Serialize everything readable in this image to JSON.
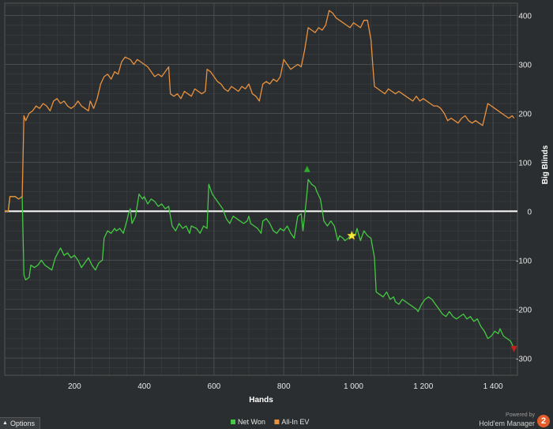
{
  "colors": {
    "background": "#2b2e30",
    "grid": "#4a4d50",
    "net_won": "#43c943",
    "all_in_ev": "#e8913f",
    "zero_line": "#ffffff",
    "star": "#f7e83a",
    "max_marker": "#2ea82e",
    "min_marker": "#c42020"
  },
  "chart_data": {
    "type": "line",
    "xlabel": "Hands",
    "ylabel": "Big Blinds",
    "xlim": [
      0,
      1470
    ],
    "ylim": [
      -335,
      425
    ],
    "x_ticks": [
      200,
      400,
      600,
      800,
      1000,
      1200,
      1400
    ],
    "x_tick_labels": [
      "200",
      "400",
      "600",
      "800",
      "1 000",
      "1 200",
      "1 400"
    ],
    "y_ticks": [
      400,
      300,
      200,
      100,
      0,
      -100,
      -200,
      -300
    ],
    "y_tick_labels": [
      "400",
      "300",
      "200",
      "100",
      "0",
      "-100",
      "-200",
      "-300"
    ],
    "grid": true,
    "legend_position": "bottom-center",
    "series": [
      {
        "name": "Net Won",
        "color": "#43c943",
        "points": [
          [
            0,
            0
          ],
          [
            10,
            0
          ],
          [
            15,
            30
          ],
          [
            30,
            30
          ],
          [
            40,
            25
          ],
          [
            50,
            30
          ],
          [
            55,
            -130
          ],
          [
            60,
            -140
          ],
          [
            70,
            -135
          ],
          [
            75,
            -110
          ],
          [
            85,
            -115
          ],
          [
            95,
            -110
          ],
          [
            105,
            -100
          ],
          [
            115,
            -110
          ],
          [
            125,
            -115
          ],
          [
            135,
            -120
          ],
          [
            145,
            -95
          ],
          [
            160,
            -75
          ],
          [
            170,
            -90
          ],
          [
            180,
            -85
          ],
          [
            190,
            -95
          ],
          [
            200,
            -90
          ],
          [
            210,
            -100
          ],
          [
            220,
            -115
          ],
          [
            230,
            -105
          ],
          [
            240,
            -95
          ],
          [
            250,
            -110
          ],
          [
            260,
            -120
          ],
          [
            270,
            -105
          ],
          [
            280,
            -100
          ],
          [
            285,
            -55
          ],
          [
            295,
            -40
          ],
          [
            305,
            -45
          ],
          [
            315,
            -35
          ],
          [
            320,
            -40
          ],
          [
            330,
            -35
          ],
          [
            340,
            -45
          ],
          [
            350,
            -20
          ],
          [
            355,
            -5
          ],
          [
            360,
            5
          ],
          [
            365,
            -25
          ],
          [
            375,
            -10
          ],
          [
            385,
            35
          ],
          [
            395,
            25
          ],
          [
            400,
            30
          ],
          [
            410,
            15
          ],
          [
            420,
            25
          ],
          [
            430,
            20
          ],
          [
            440,
            10
          ],
          [
            450,
            15
          ],
          [
            460,
            5
          ],
          [
            470,
            10
          ],
          [
            480,
            -30
          ],
          [
            490,
            -40
          ],
          [
            500,
            -25
          ],
          [
            510,
            -35
          ],
          [
            520,
            -30
          ],
          [
            530,
            -45
          ],
          [
            535,
            -30
          ],
          [
            550,
            -35
          ],
          [
            560,
            -45
          ],
          [
            570,
            -30
          ],
          [
            580,
            -35
          ],
          [
            585,
            55
          ],
          [
            595,
            35
          ],
          [
            605,
            25
          ],
          [
            615,
            15
          ],
          [
            625,
            5
          ],
          [
            635,
            -15
          ],
          [
            645,
            -25
          ],
          [
            655,
            -10
          ],
          [
            665,
            -15
          ],
          [
            675,
            -20
          ],
          [
            685,
            -25
          ],
          [
            695,
            -20
          ],
          [
            700,
            -10
          ],
          [
            705,
            -25
          ],
          [
            715,
            -30
          ],
          [
            725,
            -35
          ],
          [
            735,
            -45
          ],
          [
            740,
            -20
          ],
          [
            750,
            -15
          ],
          [
            760,
            -25
          ],
          [
            770,
            -40
          ],
          [
            780,
            -45
          ],
          [
            790,
            -35
          ],
          [
            800,
            -40
          ],
          [
            810,
            -30
          ],
          [
            820,
            -45
          ],
          [
            830,
            -55
          ],
          [
            840,
            -10
          ],
          [
            850,
            -5
          ],
          [
            855,
            -40
          ],
          [
            865,
            25
          ],
          [
            870,
            65
          ],
          [
            880,
            55
          ],
          [
            890,
            50
          ],
          [
            895,
            40
          ],
          [
            905,
            25
          ],
          [
            915,
            -20
          ],
          [
            925,
            -30
          ],
          [
            935,
            -20
          ],
          [
            945,
            -30
          ],
          [
            955,
            -60
          ],
          [
            960,
            -50
          ],
          [
            970,
            -55
          ],
          [
            975,
            -60
          ],
          [
            985,
            -55
          ],
          [
            995,
            -45
          ],
          [
            1005,
            -50
          ],
          [
            1010,
            -35
          ],
          [
            1020,
            -60
          ],
          [
            1030,
            -40
          ],
          [
            1040,
            -50
          ],
          [
            1050,
            -55
          ],
          [
            1060,
            -95
          ],
          [
            1065,
            -165
          ],
          [
            1075,
            -170
          ],
          [
            1085,
            -175
          ],
          [
            1095,
            -165
          ],
          [
            1105,
            -180
          ],
          [
            1115,
            -175
          ],
          [
            1120,
            -185
          ],
          [
            1130,
            -190
          ],
          [
            1140,
            -180
          ],
          [
            1150,
            -185
          ],
          [
            1160,
            -190
          ],
          [
            1170,
            -195
          ],
          [
            1180,
            -200
          ],
          [
            1185,
            -205
          ],
          [
            1195,
            -190
          ],
          [
            1205,
            -180
          ],
          [
            1215,
            -175
          ],
          [
            1225,
            -180
          ],
          [
            1235,
            -190
          ],
          [
            1245,
            -200
          ],
          [
            1255,
            -210
          ],
          [
            1265,
            -215
          ],
          [
            1275,
            -205
          ],
          [
            1285,
            -215
          ],
          [
            1295,
            -220
          ],
          [
            1305,
            -215
          ],
          [
            1315,
            -210
          ],
          [
            1325,
            -220
          ],
          [
            1335,
            -215
          ],
          [
            1345,
            -225
          ],
          [
            1355,
            -220
          ],
          [
            1365,
            -235
          ],
          [
            1375,
            -245
          ],
          [
            1385,
            -260
          ],
          [
            1395,
            -255
          ],
          [
            1405,
            -245
          ],
          [
            1415,
            -250
          ],
          [
            1420,
            -240
          ],
          [
            1430,
            -255
          ],
          [
            1440,
            -260
          ],
          [
            1450,
            -265
          ],
          [
            1460,
            -280
          ]
        ]
      },
      {
        "name": "All-In EV",
        "color": "#e8913f",
        "points": [
          [
            0,
            0
          ],
          [
            10,
            0
          ],
          [
            15,
            30
          ],
          [
            30,
            30
          ],
          [
            40,
            25
          ],
          [
            50,
            30
          ],
          [
            55,
            195
          ],
          [
            60,
            185
          ],
          [
            70,
            200
          ],
          [
            80,
            205
          ],
          [
            90,
            215
          ],
          [
            100,
            210
          ],
          [
            110,
            220
          ],
          [
            120,
            215
          ],
          [
            130,
            205
          ],
          [
            140,
            225
          ],
          [
            150,
            230
          ],
          [
            160,
            220
          ],
          [
            170,
            225
          ],
          [
            180,
            215
          ],
          [
            190,
            210
          ],
          [
            200,
            215
          ],
          [
            210,
            225
          ],
          [
            220,
            215
          ],
          [
            230,
            210
          ],
          [
            240,
            205
          ],
          [
            245,
            225
          ],
          [
            255,
            210
          ],
          [
            265,
            230
          ],
          [
            275,
            260
          ],
          [
            285,
            275
          ],
          [
            295,
            280
          ],
          [
            305,
            270
          ],
          [
            315,
            285
          ],
          [
            325,
            280
          ],
          [
            335,
            305
          ],
          [
            345,
            315
          ],
          [
            360,
            310
          ],
          [
            370,
            300
          ],
          [
            380,
            310
          ],
          [
            390,
            305
          ],
          [
            400,
            300
          ],
          [
            410,
            295
          ],
          [
            420,
            285
          ],
          [
            430,
            275
          ],
          [
            440,
            280
          ],
          [
            450,
            275
          ],
          [
            460,
            285
          ],
          [
            470,
            295
          ],
          [
            475,
            240
          ],
          [
            485,
            235
          ],
          [
            495,
            240
          ],
          [
            505,
            230
          ],
          [
            515,
            245
          ],
          [
            525,
            240
          ],
          [
            535,
            235
          ],
          [
            545,
            250
          ],
          [
            555,
            245
          ],
          [
            565,
            240
          ],
          [
            575,
            245
          ],
          [
            580,
            290
          ],
          [
            590,
            285
          ],
          [
            600,
            275
          ],
          [
            610,
            265
          ],
          [
            620,
            260
          ],
          [
            630,
            250
          ],
          [
            640,
            245
          ],
          [
            650,
            255
          ],
          [
            660,
            250
          ],
          [
            670,
            245
          ],
          [
            680,
            255
          ],
          [
            690,
            250
          ],
          [
            700,
            260
          ],
          [
            710,
            240
          ],
          [
            720,
            235
          ],
          [
            730,
            225
          ],
          [
            740,
            260
          ],
          [
            750,
            265
          ],
          [
            760,
            260
          ],
          [
            770,
            270
          ],
          [
            780,
            265
          ],
          [
            790,
            275
          ],
          [
            800,
            310
          ],
          [
            810,
            300
          ],
          [
            820,
            290
          ],
          [
            830,
            295
          ],
          [
            840,
            300
          ],
          [
            850,
            295
          ],
          [
            860,
            330
          ],
          [
            870,
            375
          ],
          [
            880,
            370
          ],
          [
            890,
            365
          ],
          [
            900,
            375
          ],
          [
            910,
            370
          ],
          [
            920,
            380
          ],
          [
            930,
            410
          ],
          [
            940,
            405
          ],
          [
            950,
            395
          ],
          [
            960,
            390
          ],
          [
            970,
            385
          ],
          [
            980,
            380
          ],
          [
            990,
            375
          ],
          [
            1000,
            385
          ],
          [
            1010,
            380
          ],
          [
            1020,
            375
          ],
          [
            1030,
            390
          ],
          [
            1040,
            390
          ],
          [
            1050,
            350
          ],
          [
            1055,
            300
          ],
          [
            1060,
            255
          ],
          [
            1070,
            250
          ],
          [
            1080,
            245
          ],
          [
            1090,
            240
          ],
          [
            1100,
            250
          ],
          [
            1110,
            245
          ],
          [
            1120,
            240
          ],
          [
            1130,
            245
          ],
          [
            1140,
            240
          ],
          [
            1150,
            235
          ],
          [
            1160,
            230
          ],
          [
            1170,
            225
          ],
          [
            1180,
            235
          ],
          [
            1190,
            225
          ],
          [
            1200,
            230
          ],
          [
            1210,
            225
          ],
          [
            1220,
            220
          ],
          [
            1230,
            215
          ],
          [
            1240,
            215
          ],
          [
            1250,
            210
          ],
          [
            1260,
            200
          ],
          [
            1270,
            185
          ],
          [
            1280,
            190
          ],
          [
            1290,
            185
          ],
          [
            1300,
            180
          ],
          [
            1310,
            190
          ],
          [
            1320,
            195
          ],
          [
            1330,
            185
          ],
          [
            1340,
            180
          ],
          [
            1350,
            185
          ],
          [
            1360,
            180
          ],
          [
            1370,
            175
          ],
          [
            1380,
            205
          ],
          [
            1385,
            220
          ],
          [
            1395,
            215
          ],
          [
            1405,
            210
          ],
          [
            1415,
            205
          ],
          [
            1425,
            200
          ],
          [
            1435,
            195
          ],
          [
            1445,
            190
          ],
          [
            1455,
            195
          ],
          [
            1460,
            190
          ]
        ]
      }
    ],
    "markers": [
      {
        "type": "star",
        "x": 995,
        "y": -50,
        "color": "#f7e83a"
      },
      {
        "type": "max-triangle",
        "x": 867,
        "y": 85,
        "color": "#2ea82e"
      },
      {
        "type": "min-triangle",
        "x": 1460,
        "y": -280,
        "color": "#c42020"
      }
    ]
  },
  "ui": {
    "options_label": "Options",
    "powered_by": "Powered by",
    "product_name": "Hold'em Manager",
    "logo_glyph": "2"
  }
}
